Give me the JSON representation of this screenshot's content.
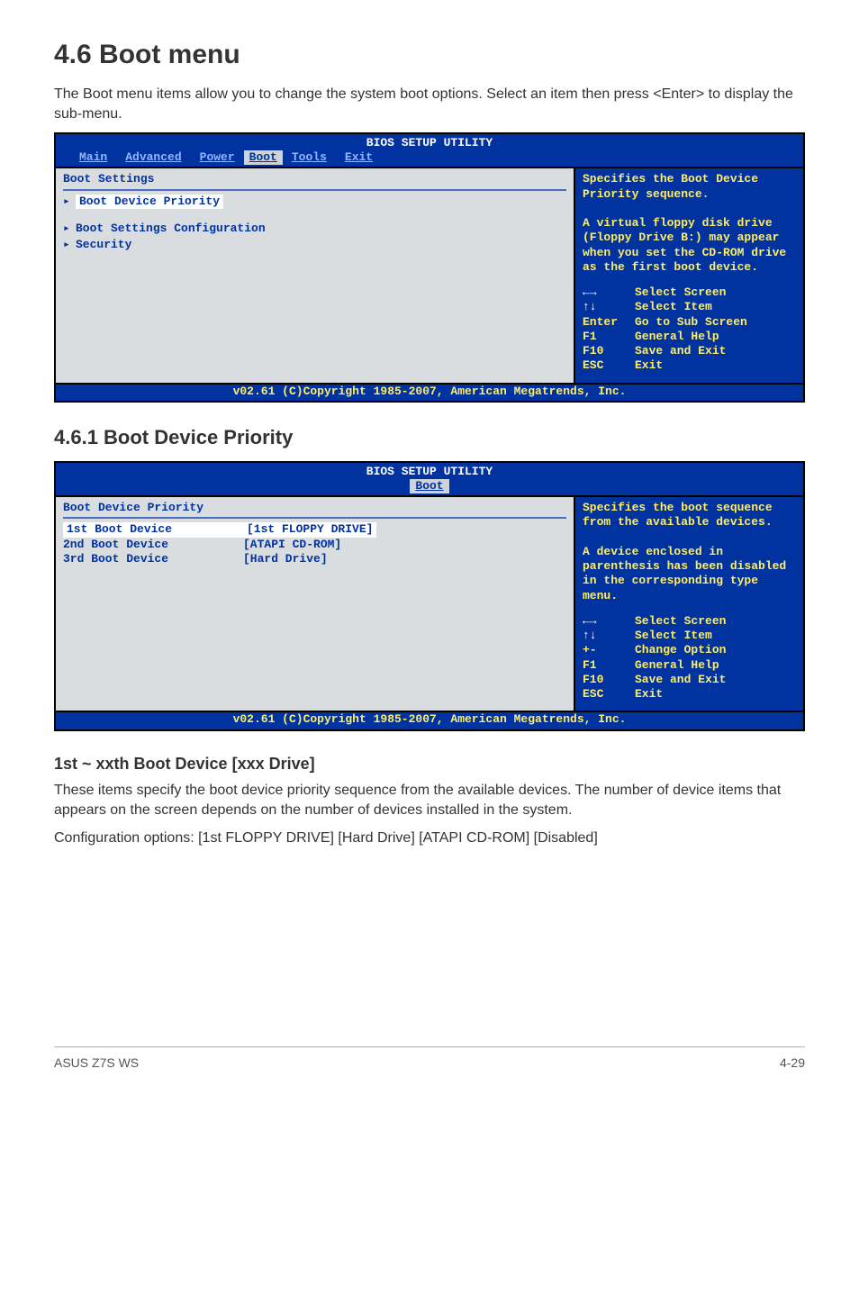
{
  "title": "4.6    Boot menu",
  "intro": "The Boot menu items allow you to change the system boot options. Select an item then press <Enter> to display the sub-menu.",
  "bios1": {
    "headerTitle": "BIOS SETUP UTILITY",
    "tabs": [
      "Main",
      "Advanced",
      "Power",
      "Boot",
      "Tools",
      "Exit"
    ],
    "selectedTab": "Boot",
    "leftTitle": "Boot Settings",
    "items": [
      {
        "label": "Boot Device Priority",
        "selected": true
      },
      {
        "label": "Boot Settings Configuration",
        "selected": false
      },
      {
        "label": "Security",
        "selected": false
      }
    ],
    "help": "Specifies the Boot Device Priority sequence.\n\nA virtual floppy disk drive (Floppy Drive B:) may appear when you set the CD-ROM drive as the first boot device.",
    "nav": [
      {
        "key": "←→",
        "label": "Select Screen",
        "arrow": true
      },
      {
        "key": "↑↓",
        "label": "Select Item",
        "arrow": true
      },
      {
        "key": "Enter",
        "label": "Go to Sub Screen"
      },
      {
        "key": "F1",
        "label": "General Help"
      },
      {
        "key": "F10",
        "label": "Save and Exit"
      },
      {
        "key": "ESC",
        "label": "Exit"
      }
    ],
    "footer": "v02.61 (C)Copyright 1985-2007, American Megatrends, Inc."
  },
  "sub461": {
    "heading": "4.6.1    Boot Device Priority"
  },
  "bios2": {
    "headerTitle": "BIOS SETUP UTILITY",
    "selectedTab": "Boot",
    "leftTitle": "Boot Device Priority",
    "devices": [
      {
        "label": "1st Boot Device",
        "value": "[1st FLOPPY DRIVE]",
        "selected": true
      },
      {
        "label": "2nd Boot Device",
        "value": "[ATAPI CD-ROM]",
        "selected": false
      },
      {
        "label": "3rd Boot Device",
        "value": "[Hard Drive]",
        "selected": false
      }
    ],
    "help": "Specifies the boot sequence from the available devices.\n\nA device enclosed in parenthesis has been disabled in the corresponding type menu.",
    "nav": [
      {
        "key": "←→",
        "label": "Select Screen",
        "arrow": true
      },
      {
        "key": "↑↓",
        "label": "Select Item",
        "arrow": true
      },
      {
        "key": "+-",
        "label": "Change Option"
      },
      {
        "key": "F1",
        "label": "General Help"
      },
      {
        "key": "F10",
        "label": "Save and Exit"
      },
      {
        "key": "ESC",
        "label": "Exit"
      }
    ],
    "footer": "v02.61 (C)Copyright 1985-2007, American Megatrends, Inc."
  },
  "itemHead": "1st ~ xxth Boot Device [xxx Drive]",
  "para1": "These items specify the boot device priority sequence from the available devices. The number of device items that appears on the screen depends on the number of devices installed in the system.",
  "para2": "Configuration options: [1st FLOPPY DRIVE] [Hard Drive] [ATAPI CD-ROM] [Disabled]",
  "footerLeft": "ASUS Z7S WS",
  "footerRight": "4-29"
}
